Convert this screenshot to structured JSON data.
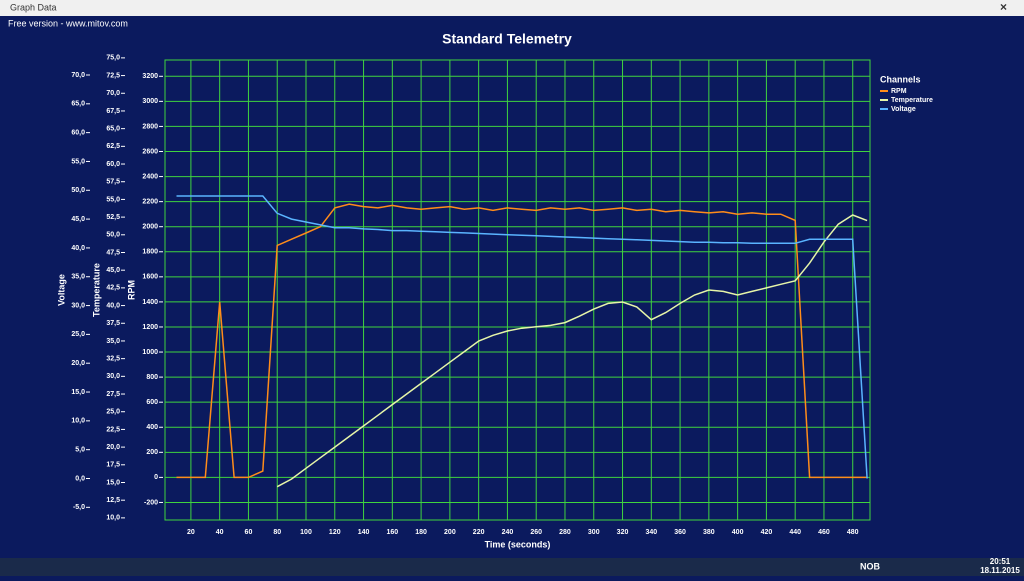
{
  "window": {
    "title": "Graph Data",
    "notice": "Free version - www.mitov.com"
  },
  "taskbar": {
    "language": "NOB",
    "time": "20:51",
    "date": "18.11.2015"
  },
  "chart_data": {
    "type": "line",
    "title": "Standard Telemetry",
    "xlabel": "Time (seconds)",
    "ylabel": "RPM",
    "y2label": "Temperature",
    "y3label": "Voltage",
    "legend_title": "Channels",
    "legend": "right",
    "grid": true,
    "grid_color": "#3fd43f",
    "background": "#0b1a5e",
    "x": [
      10,
      20,
      30,
      40,
      50,
      60,
      70,
      80,
      90,
      100,
      110,
      120,
      130,
      140,
      150,
      160,
      170,
      180,
      190,
      200,
      210,
      220,
      230,
      240,
      250,
      260,
      270,
      280,
      290,
      300,
      310,
      320,
      330,
      340,
      350,
      360,
      370,
      380,
      390,
      400,
      410,
      420,
      430,
      440,
      450,
      460,
      470,
      480,
      490
    ],
    "xlim": [
      2,
      492
    ],
    "xticks": [
      20,
      40,
      60,
      80,
      100,
      120,
      140,
      160,
      180,
      200,
      220,
      240,
      260,
      280,
      300,
      320,
      340,
      360,
      380,
      400,
      420,
      440,
      460,
      480
    ],
    "ylim": [
      -340,
      3330
    ],
    "yticks": [
      -200,
      0,
      200,
      400,
      600,
      800,
      1000,
      1200,
      1400,
      1600,
      1800,
      2000,
      2200,
      2400,
      2600,
      2800,
      3000,
      3200
    ],
    "y2lim": [
      9.7,
      74.7
    ],
    "y2ticks": [
      {
        "value": 10,
        "label": "10,0"
      },
      {
        "value": 12.5,
        "label": "12,5"
      },
      {
        "value": 15,
        "label": "15,0"
      },
      {
        "value": 17.5,
        "label": "17,5"
      },
      {
        "value": 20,
        "label": "20,0"
      },
      {
        "value": 22.5,
        "label": "22,5"
      },
      {
        "value": 25,
        "label": "25,0"
      },
      {
        "value": 27.5,
        "label": "27,5"
      },
      {
        "value": 30,
        "label": "30,0"
      },
      {
        "value": 32.5,
        "label": "32,5"
      },
      {
        "value": 35,
        "label": "35,0"
      },
      {
        "value": 37.5,
        "label": "37,5"
      },
      {
        "value": 40,
        "label": "40,0"
      },
      {
        "value": 42.5,
        "label": "42,5"
      },
      {
        "value": 45,
        "label": "45,0"
      },
      {
        "value": 47.5,
        "label": "47,5"
      },
      {
        "value": 50,
        "label": "50,0"
      },
      {
        "value": 52.5,
        "label": "52,5"
      },
      {
        "value": 55,
        "label": "55,0"
      },
      {
        "value": 57.5,
        "label": "57,5"
      },
      {
        "value": 60,
        "label": "60,0"
      },
      {
        "value": 62.5,
        "label": "62,5"
      },
      {
        "value": 65,
        "label": "65,0"
      },
      {
        "value": 67.5,
        "label": "67,5"
      },
      {
        "value": 70,
        "label": "70,0"
      },
      {
        "value": 72.5,
        "label": "72,5"
      },
      {
        "value": 75,
        "label": "75,0"
      }
    ],
    "y3lim": [
      -7.2,
      72.6
    ],
    "y3ticks": [
      {
        "value": -5,
        "label": "-5,0"
      },
      {
        "value": 0,
        "label": "0,0"
      },
      {
        "value": 5,
        "label": "5,0"
      },
      {
        "value": 10,
        "label": "10,0"
      },
      {
        "value": 15,
        "label": "15,0"
      },
      {
        "value": 20,
        "label": "20,0"
      },
      {
        "value": 25,
        "label": "25,0"
      },
      {
        "value": 30,
        "label": "30,0"
      },
      {
        "value": 35,
        "label": "35,0"
      },
      {
        "value": 40,
        "label": "40,0"
      },
      {
        "value": 45,
        "label": "45,0"
      },
      {
        "value": 50,
        "label": "50,0"
      },
      {
        "value": 55,
        "label": "55,0"
      },
      {
        "value": 60,
        "label": "60,0"
      },
      {
        "value": 65,
        "label": "65,0"
      },
      {
        "value": 70,
        "label": "70,0"
      }
    ],
    "series": [
      {
        "name": "RPM",
        "color": "#ff8c1a",
        "axis": "y",
        "values": [
          0,
          0,
          0,
          1400,
          0,
          0,
          50,
          1850,
          1900,
          1950,
          2000,
          2150,
          2180,
          2160,
          2150,
          2170,
          2150,
          2140,
          2150,
          2160,
          2140,
          2150,
          2130,
          2150,
          2140,
          2130,
          2150,
          2140,
          2150,
          2130,
          2140,
          2150,
          2130,
          2140,
          2120,
          2130,
          2120,
          2110,
          2120,
          2100,
          2110,
          2100,
          2100,
          2050,
          0,
          0,
          0,
          0,
          0
        ]
      },
      {
        "name": "Temperature",
        "color": "#e6f5a8",
        "axis": "y2",
        "values": [
          null,
          null,
          null,
          null,
          null,
          null,
          null,
          14.4,
          15.5,
          17,
          18.5,
          20,
          21.5,
          23,
          24.5,
          26,
          27.5,
          29,
          30.5,
          32,
          33.5,
          35,
          35.8,
          36.4,
          36.8,
          37,
          37.2,
          37.6,
          38.5,
          39.5,
          40.3,
          40.5,
          39.8,
          38,
          39,
          40.3,
          41.5,
          42.2,
          42,
          41.5,
          42,
          42.5,
          43,
          43.5,
          46,
          49,
          51.5,
          52.8,
          52
        ]
      },
      {
        "name": "Voltage",
        "color": "#5ab4ff",
        "axis": "y3",
        "values": [
          49,
          49,
          49,
          49,
          49,
          49,
          49,
          46,
          45,
          44.5,
          44,
          43.5,
          43.5,
          43.3,
          43.2,
          43,
          43,
          42.9,
          42.8,
          42.7,
          42.6,
          42.5,
          42.4,
          42.3,
          42.2,
          42.1,
          42,
          41.9,
          41.8,
          41.7,
          41.6,
          41.5,
          41.4,
          41.3,
          41.2,
          41.1,
          41,
          41,
          40.9,
          40.9,
          40.8,
          40.8,
          40.8,
          40.8,
          41.5,
          41.5,
          41.5,
          41.5,
          0
        ]
      }
    ]
  }
}
